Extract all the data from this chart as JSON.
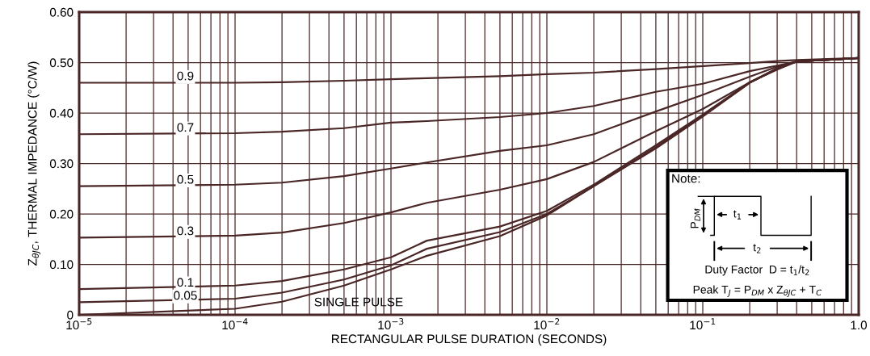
{
  "chart_data": {
    "type": "line",
    "ylabel": "Z$_{θJC}$, THERMAL IMPEDANCE (°C/W)",
    "xlabel": "RECTANGULAR PULSE DURATION (SECONDS)",
    "log": "x",
    "xlim": [
      1e-05,
      1.0
    ],
    "xticks": [
      {
        "value": 1e-05,
        "label": "10$^{−5}$"
      },
      {
        "value": 2e-05,
        "label": null
      },
      {
        "value": 3e-05,
        "label": null
      },
      {
        "value": 4e-05,
        "label": null
      },
      {
        "value": 5e-05,
        "label": null
      },
      {
        "value": 6e-05,
        "label": null
      },
      {
        "value": 7e-05,
        "label": null
      },
      {
        "value": 8e-05,
        "label": null
      },
      {
        "value": 9e-05,
        "label": null
      },
      {
        "value": 0.0001,
        "label": "10$^{−4}$"
      },
      {
        "value": 0.0002,
        "label": null
      },
      {
        "value": 0.0003,
        "label": null
      },
      {
        "value": 0.0004,
        "label": null
      },
      {
        "value": 0.0005,
        "label": null
      },
      {
        "value": 0.0006,
        "label": null
      },
      {
        "value": 0.0007,
        "label": null
      },
      {
        "value": 0.0008,
        "label": null
      },
      {
        "value": 0.0009,
        "label": null
      },
      {
        "value": 0.001,
        "label": "10$^{−3}$"
      },
      {
        "value": 0.002,
        "label": null
      },
      {
        "value": 0.003,
        "label": null
      },
      {
        "value": 0.004,
        "label": null
      },
      {
        "value": 0.005,
        "label": null
      },
      {
        "value": 0.006,
        "label": null
      },
      {
        "value": 0.007,
        "label": null
      },
      {
        "value": 0.008,
        "label": null
      },
      {
        "value": 0.009,
        "label": null
      },
      {
        "value": 0.01,
        "label": "10$^{−2}$"
      },
      {
        "value": 0.02,
        "label": null
      },
      {
        "value": 0.03,
        "label": null
      },
      {
        "value": 0.04,
        "label": null
      },
      {
        "value": 0.05,
        "label": null
      },
      {
        "value": 0.06,
        "label": null
      },
      {
        "value": 0.07,
        "label": null
      },
      {
        "value": 0.08,
        "label": null
      },
      {
        "value": 0.09,
        "label": null
      },
      {
        "value": 0.1,
        "label": "10$^{−1}$"
      },
      {
        "value": 0.2,
        "label": null
      },
      {
        "value": 0.3,
        "label": null
      },
      {
        "value": 0.4,
        "label": null
      },
      {
        "value": 0.5,
        "label": null
      },
      {
        "value": 0.6,
        "label": null
      },
      {
        "value": 0.7,
        "label": null
      },
      {
        "value": 0.8,
        "label": null
      },
      {
        "value": 0.9,
        "label": null
      },
      {
        "value": 1.0,
        "label": "1.0"
      }
    ],
    "ylim": [
      0,
      0.6
    ],
    "yticks": [
      0,
      {
        "value": 0.1,
        "label": "0.10"
      },
      {
        "value": 0.2,
        "label": "0.20"
      },
      {
        "value": 0.3,
        "label": "0.30"
      },
      {
        "value": 0.4,
        "label": "0.40"
      },
      {
        "value": 0.5,
        "label": "0.50"
      },
      {
        "value": 0.6,
        "label": "0.60"
      }
    ],
    "grid": true,
    "legend": false,
    "x": [
      1e-05,
      0.0001,
      0.0002,
      0.0005,
      0.001,
      0.0017,
      0.005,
      0.01,
      0.02,
      0.05,
      0.1,
      0.2,
      0.3,
      0.4,
      1.0
    ],
    "series": [
      {
        "name": "0.9",
        "color": "#4a2626",
        "values": [
          0.46,
          0.46,
          0.461,
          0.464,
          0.467,
          0.469,
          0.473,
          0.477,
          0.48,
          0.487,
          0.493,
          0.499,
          0.503,
          0.505,
          0.509
        ]
      },
      {
        "name": "0.7",
        "color": "#4a2626",
        "values": [
          0.358,
          0.36,
          0.363,
          0.37,
          0.381,
          0.384,
          0.392,
          0.4,
          0.414,
          0.442,
          0.458,
          0.483,
          0.494,
          0.502,
          0.509
        ]
      },
      {
        "name": "0.5",
        "color": "#4a2626",
        "values": [
          0.255,
          0.258,
          0.262,
          0.275,
          0.29,
          0.302,
          0.325,
          0.336,
          0.358,
          0.403,
          0.436,
          0.472,
          0.492,
          0.502,
          0.509
        ]
      },
      {
        "name": "0.3",
        "color": "#4a2626",
        "values": [
          0.153,
          0.157,
          0.163,
          0.182,
          0.203,
          0.222,
          0.248,
          0.269,
          0.303,
          0.364,
          0.408,
          0.461,
          0.486,
          0.502,
          0.509
        ]
      },
      {
        "name": "0.1",
        "color": "#4a2626",
        "values": [
          0.051,
          0.058,
          0.067,
          0.09,
          0.114,
          0.147,
          0.175,
          0.206,
          0.258,
          0.336,
          0.397,
          0.461,
          0.489,
          0.502,
          0.509
        ]
      },
      {
        "name": "0.05",
        "color": "#4a2626",
        "values": [
          0.025,
          0.032,
          0.044,
          0.07,
          0.098,
          0.131,
          0.164,
          0.2,
          0.255,
          0.332,
          0.395,
          0.46,
          0.488,
          0.502,
          0.509
        ]
      },
      {
        "name": "SINGLE PULSE",
        "color": "#4a2626",
        "values": [
          0.0,
          0.012,
          0.026,
          0.058,
          0.09,
          0.117,
          0.156,
          0.197,
          0.255,
          0.33,
          0.393,
          0.46,
          0.488,
          0.502,
          0.509
        ]
      }
    ],
    "annotations": [
      "Note:",
      "P$_{DM}$",
      "t$_{1}$",
      "t$_{2}$",
      "Duty Factor  D = t$_{1}$/t$_{2}$",
      "Peak T$_{J}$ = P$_{DM}$ x Z$_{θJC}$ + T$_{C}$"
    ]
  }
}
